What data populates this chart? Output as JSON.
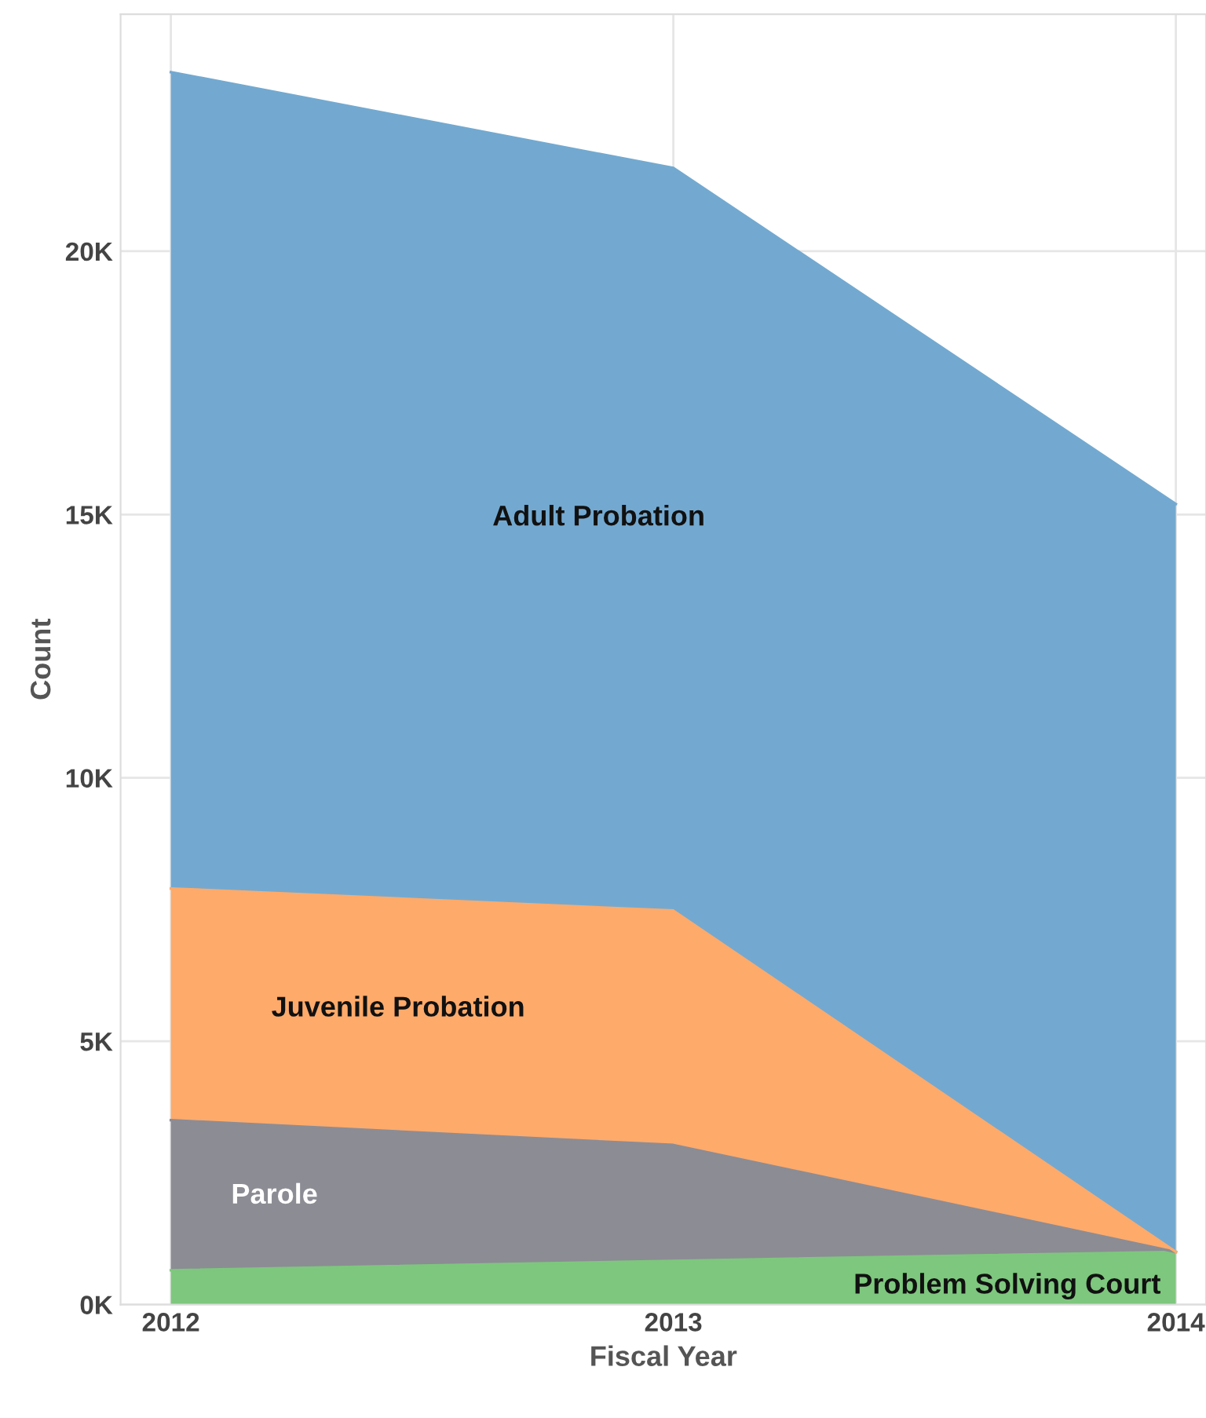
{
  "chart_data": {
    "type": "area",
    "stacked": true,
    "xlabel": "Fiscal Year",
    "ylabel": "Count",
    "x": [
      2012,
      2013,
      2014
    ],
    "xlim": [
      2011.9,
      2014.06
    ],
    "xticks": [
      2012,
      2013,
      2014
    ],
    "ylim": [
      0,
      24500
    ],
    "yticks": [
      {
        "value": 0,
        "label": "0K"
      },
      {
        "value": 5000,
        "label": "5K"
      },
      {
        "value": 10000,
        "label": "10K"
      },
      {
        "value": 15000,
        "label": "15K"
      },
      {
        "value": 20000,
        "label": "20K"
      }
    ],
    "grid": true,
    "legend": false,
    "series": [
      {
        "name": "Problem Solving Court",
        "color": "#7ec77e",
        "values": [
          650,
          830,
          1000
        ]
      },
      {
        "name": "Parole",
        "color": "#8c8c94",
        "values": [
          2850,
          2200,
          0
        ]
      },
      {
        "name": "Juvenile Probation",
        "color": "#fdaa6b",
        "values": [
          4400,
          4450,
          0
        ]
      },
      {
        "name": "Adult Probation",
        "color": "#73a9d0",
        "values": [
          15500,
          14100,
          14200
        ]
      }
    ]
  }
}
